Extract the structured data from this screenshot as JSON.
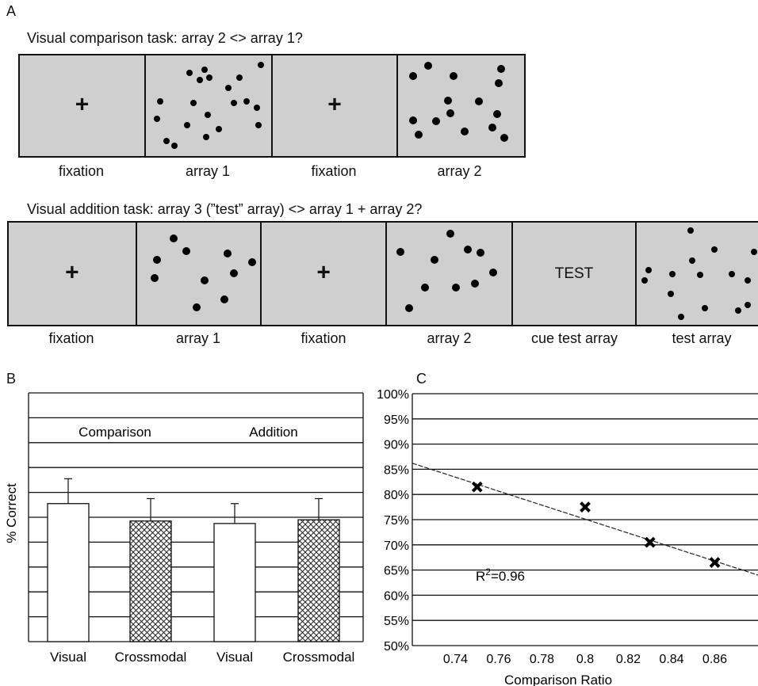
{
  "panel_a": {
    "letter": "A",
    "comparison": {
      "title": "Visual comparison task: array 2 <> array 1?",
      "frames": [
        {
          "type": "fixation",
          "symbol": "+",
          "label": "fixation"
        },
        {
          "type": "dots",
          "label": "array 1"
        },
        {
          "type": "fixation",
          "symbol": "+",
          "label": "fixation"
        },
        {
          "type": "dots",
          "label": "array 2"
        }
      ]
    },
    "addition": {
      "title": "Visual addition task: array 3 (”test” array) <> array 1 + array 2?",
      "frames": [
        {
          "type": "fixation",
          "symbol": "+",
          "label": "fixation"
        },
        {
          "type": "dots",
          "label": "array 1"
        },
        {
          "type": "fixation",
          "symbol": "+",
          "label": "fixation"
        },
        {
          "type": "dots",
          "label": "array 2"
        },
        {
          "type": "cue",
          "text": "TEST",
          "label": "cue test array"
        },
        {
          "type": "dots",
          "label": "test array"
        }
      ]
    }
  },
  "panel_b": {
    "letter": "B",
    "ylabel": "% Correct",
    "group_labels": [
      "Comparison",
      "Addition"
    ],
    "bar_labels": [
      "Visual",
      "Crossmodal",
      "Visual",
      "Crossmodal"
    ]
  },
  "panel_c": {
    "letter": "C",
    "xlabel": "Comparison Ratio",
    "annotation": "R²=0.96",
    "annotation_base": "R",
    "annotation_sup": "2",
    "annotation_rest": "=0.96"
  },
  "chart_data": [
    {
      "type": "bar",
      "ylabel": "% Correct",
      "categories": [
        "Visual",
        "Crossmodal",
        "Visual",
        "Crossmodal"
      ],
      "groups": [
        "Comparison",
        "Comparison",
        "Addition",
        "Addition"
      ],
      "values": [
        0.555,
        0.485,
        0.475,
        0.49
      ],
      "errors": [
        0.1,
        0.09,
        0.08,
        0.085
      ],
      "ylim": [
        0,
        1
      ],
      "fills": [
        "white",
        "crosshatch",
        "white",
        "crosshatch"
      ],
      "gridlines": 10,
      "grid": true
    },
    {
      "type": "scatter",
      "xlabel": "Comparison Ratio",
      "x": [
        0.75,
        0.8,
        0.83,
        0.86
      ],
      "y": [
        81.5,
        77.5,
        70.5,
        66.5
      ],
      "xlim": [
        0.72,
        0.88
      ],
      "ylim": [
        50,
        100
      ],
      "xticks": [
        "0.74",
        "0.76",
        "0.78",
        "0.8",
        "0.82",
        "0.84",
        "0.86"
      ],
      "yticks": [
        "50%",
        "55%",
        "60%",
        "65%",
        "70%",
        "75%",
        "80%",
        "85%",
        "90%",
        "95%",
        "100%"
      ],
      "trendline": {
        "x": [
          0.72,
          0.88
        ],
        "y": [
          86.2,
          64.0
        ]
      },
      "annotation": "R²=0.96",
      "marker": "x",
      "grid": true
    }
  ]
}
